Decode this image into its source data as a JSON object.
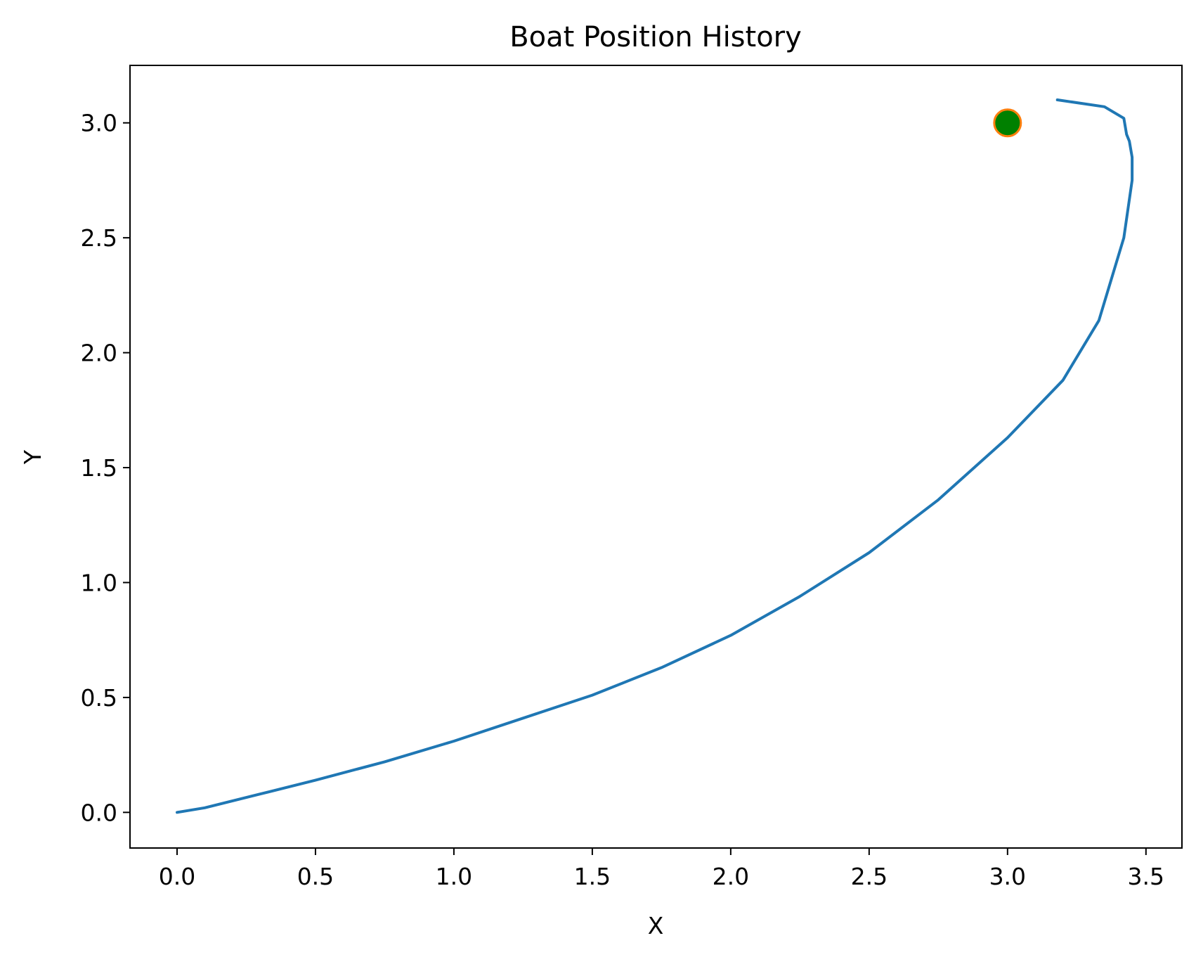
{
  "chart_data": {
    "type": "line",
    "title": "Boat Position History",
    "xlabel": "X",
    "ylabel": "Y",
    "xlim": [
      -0.17,
      3.63
    ],
    "ylim": [
      -0.155,
      3.25
    ],
    "xticks": [
      0.0,
      0.5,
      1.0,
      1.5,
      2.0,
      2.5,
      3.0,
      3.5
    ],
    "yticks": [
      0.0,
      0.5,
      1.0,
      1.5,
      2.0,
      2.5,
      3.0
    ],
    "grid": false,
    "series": [
      {
        "type": "line",
        "color": "#1f77b4",
        "x": [
          0.0,
          0.1,
          0.3,
          0.5,
          0.75,
          1.0,
          1.25,
          1.5,
          1.75,
          2.0,
          2.25,
          2.5,
          2.75,
          3.0,
          3.2,
          3.33,
          3.42,
          3.45,
          3.45,
          3.44,
          3.43,
          3.42,
          3.35,
          3.18
        ],
        "y": [
          0.0,
          0.02,
          0.08,
          0.14,
          0.22,
          0.31,
          0.41,
          0.51,
          0.63,
          0.77,
          0.94,
          1.13,
          1.36,
          1.63,
          1.88,
          2.14,
          2.5,
          2.75,
          2.85,
          2.92,
          2.95,
          3.02,
          3.07,
          3.1
        ]
      },
      {
        "type": "marker",
        "color": "#008000",
        "edgecolor": "#ff7f0e",
        "x": [
          3.0
        ],
        "y": [
          3.0
        ]
      }
    ]
  }
}
